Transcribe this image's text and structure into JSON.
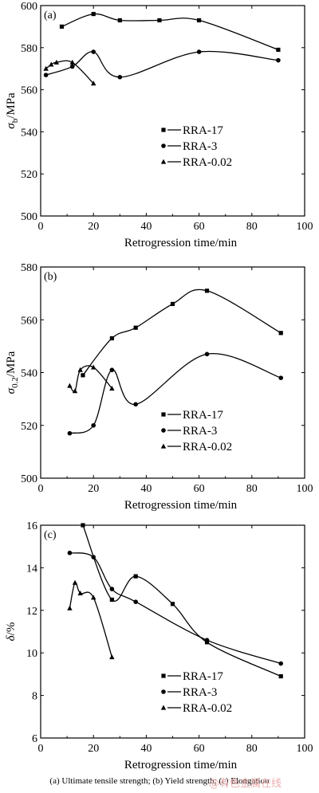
{
  "figure": {
    "caption": "(a)  Ultimate  tensile  strength; (b) Yield strength; (c) Elongation",
    "watermark": "@有色金属在线"
  },
  "chart_data": [
    {
      "type": "scatter",
      "panel_label": "(a)",
      "xlabel": "Retrogression time/min",
      "ylabel": "σb/MPa",
      "ylabel_main": "σ",
      "ylabel_sub": "b",
      "ylabel_rest": "/MPa",
      "xlim": [
        0,
        100
      ],
      "ylim": [
        500,
        600
      ],
      "xticks": [
        0,
        20,
        40,
        60,
        80,
        100
      ],
      "yticks": [
        500,
        520,
        540,
        560,
        580,
        600
      ],
      "legend_placement": "lower-center",
      "series": [
        {
          "name": "RRA-17",
          "marker": "square",
          "x": [
            8,
            20,
            30,
            45,
            60,
            90
          ],
          "y": [
            590,
            596,
            593,
            593,
            593,
            579
          ]
        },
        {
          "name": "RRA-3",
          "marker": "circle",
          "x": [
            2,
            12,
            20,
            30,
            60,
            90
          ],
          "y": [
            567,
            571,
            578,
            566,
            578,
            574
          ]
        },
        {
          "name": "RRA-0.02",
          "marker": "triangle",
          "x": [
            2,
            4,
            6,
            12,
            20
          ],
          "y": [
            570,
            572,
            573,
            573,
            563
          ]
        }
      ]
    },
    {
      "type": "scatter",
      "panel_label": "(b)",
      "xlabel": "Retrogression time/min",
      "ylabel": "σ0.2/MPa",
      "ylabel_main": "σ",
      "ylabel_sub": "0.2",
      "ylabel_rest": "/MPa",
      "xlim": [
        0,
        100
      ],
      "ylim": [
        500,
        580
      ],
      "xticks": [
        0,
        20,
        40,
        60,
        80,
        100
      ],
      "yticks": [
        500,
        520,
        540,
        560,
        580
      ],
      "legend_placement": "lower-right",
      "series": [
        {
          "name": "RRA-17",
          "marker": "square",
          "x": [
            16,
            27,
            36,
            50,
            63,
            91
          ],
          "y": [
            539,
            553,
            557,
            566,
            571,
            555
          ]
        },
        {
          "name": "RRA-3",
          "marker": "circle",
          "x": [
            11,
            20,
            27,
            36,
            63,
            91
          ],
          "y": [
            517,
            520,
            541,
            528,
            547,
            538
          ]
        },
        {
          "name": "RRA-0.02",
          "marker": "triangle",
          "x": [
            11,
            13,
            15,
            20,
            27
          ],
          "y": [
            535,
            533,
            541,
            542,
            534
          ]
        }
      ]
    },
    {
      "type": "scatter",
      "panel_label": "(c)",
      "xlabel": "Retrogression time/min",
      "ylabel": "δ/%",
      "ylabel_main": "δ",
      "ylabel_sub": "",
      "ylabel_rest": "/%",
      "xlim": [
        0,
        100
      ],
      "ylim": [
        6,
        16
      ],
      "xticks": [
        0,
        20,
        40,
        60,
        80,
        100
      ],
      "yticks": [
        6,
        8,
        10,
        12,
        14,
        16
      ],
      "legend_placement": "lower-right",
      "series": [
        {
          "name": "RRA-17",
          "marker": "square",
          "x": [
            16,
            27,
            36,
            50,
            63,
            91
          ],
          "y": [
            16.0,
            12.5,
            13.6,
            12.3,
            10.5,
            8.9
          ]
        },
        {
          "name": "RRA-3",
          "marker": "circle",
          "x": [
            11,
            20,
            27,
            36,
            63,
            91
          ],
          "y": [
            14.7,
            14.5,
            13.0,
            12.4,
            10.6,
            9.5
          ]
        },
        {
          "name": "RRA-0.02",
          "marker": "triangle",
          "x": [
            11,
            13,
            15,
            20,
            27
          ],
          "y": [
            12.1,
            13.3,
            12.8,
            12.6,
            9.8
          ]
        }
      ]
    }
  ]
}
